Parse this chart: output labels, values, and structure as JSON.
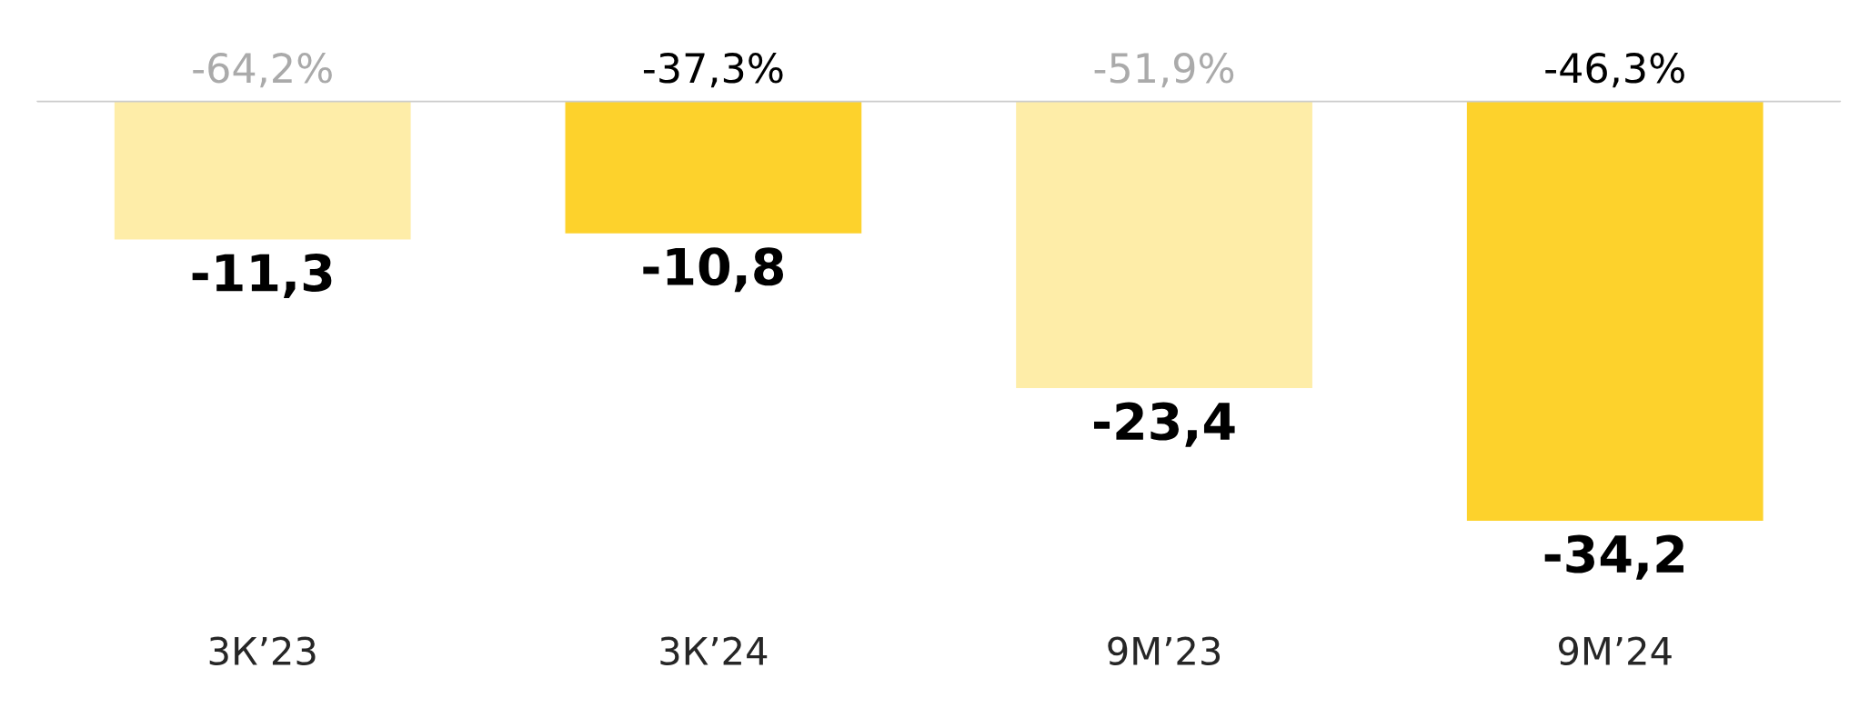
{
  "chart_data": {
    "type": "bar",
    "categories": [
      "3К’23",
      "3К’24",
      "9М’23",
      "9М’24"
    ],
    "values": [
      -11.3,
      -10.8,
      -23.4,
      -34.2
    ],
    "colors": [
      "#feeda8",
      "#fdd22c",
      "#feeda8",
      "#fdd22c"
    ],
    "value_labels": [
      "-11,3",
      "-10,8",
      "-23,4",
      "-34,2"
    ],
    "annotations": [
      {
        "text": "-64,2%",
        "x": "3К’23",
        "y": 0
      },
      {
        "text": "-37,3%",
        "x": "3К’24",
        "y": 0
      },
      {
        "text": "-51,9%",
        "x": "9М’23",
        "y": 0
      },
      {
        "text": "-46,3%",
        "x": "9М’24",
        "y": 0
      }
    ],
    "tick_labels": "x",
    "grid": false,
    "legend": false
  }
}
